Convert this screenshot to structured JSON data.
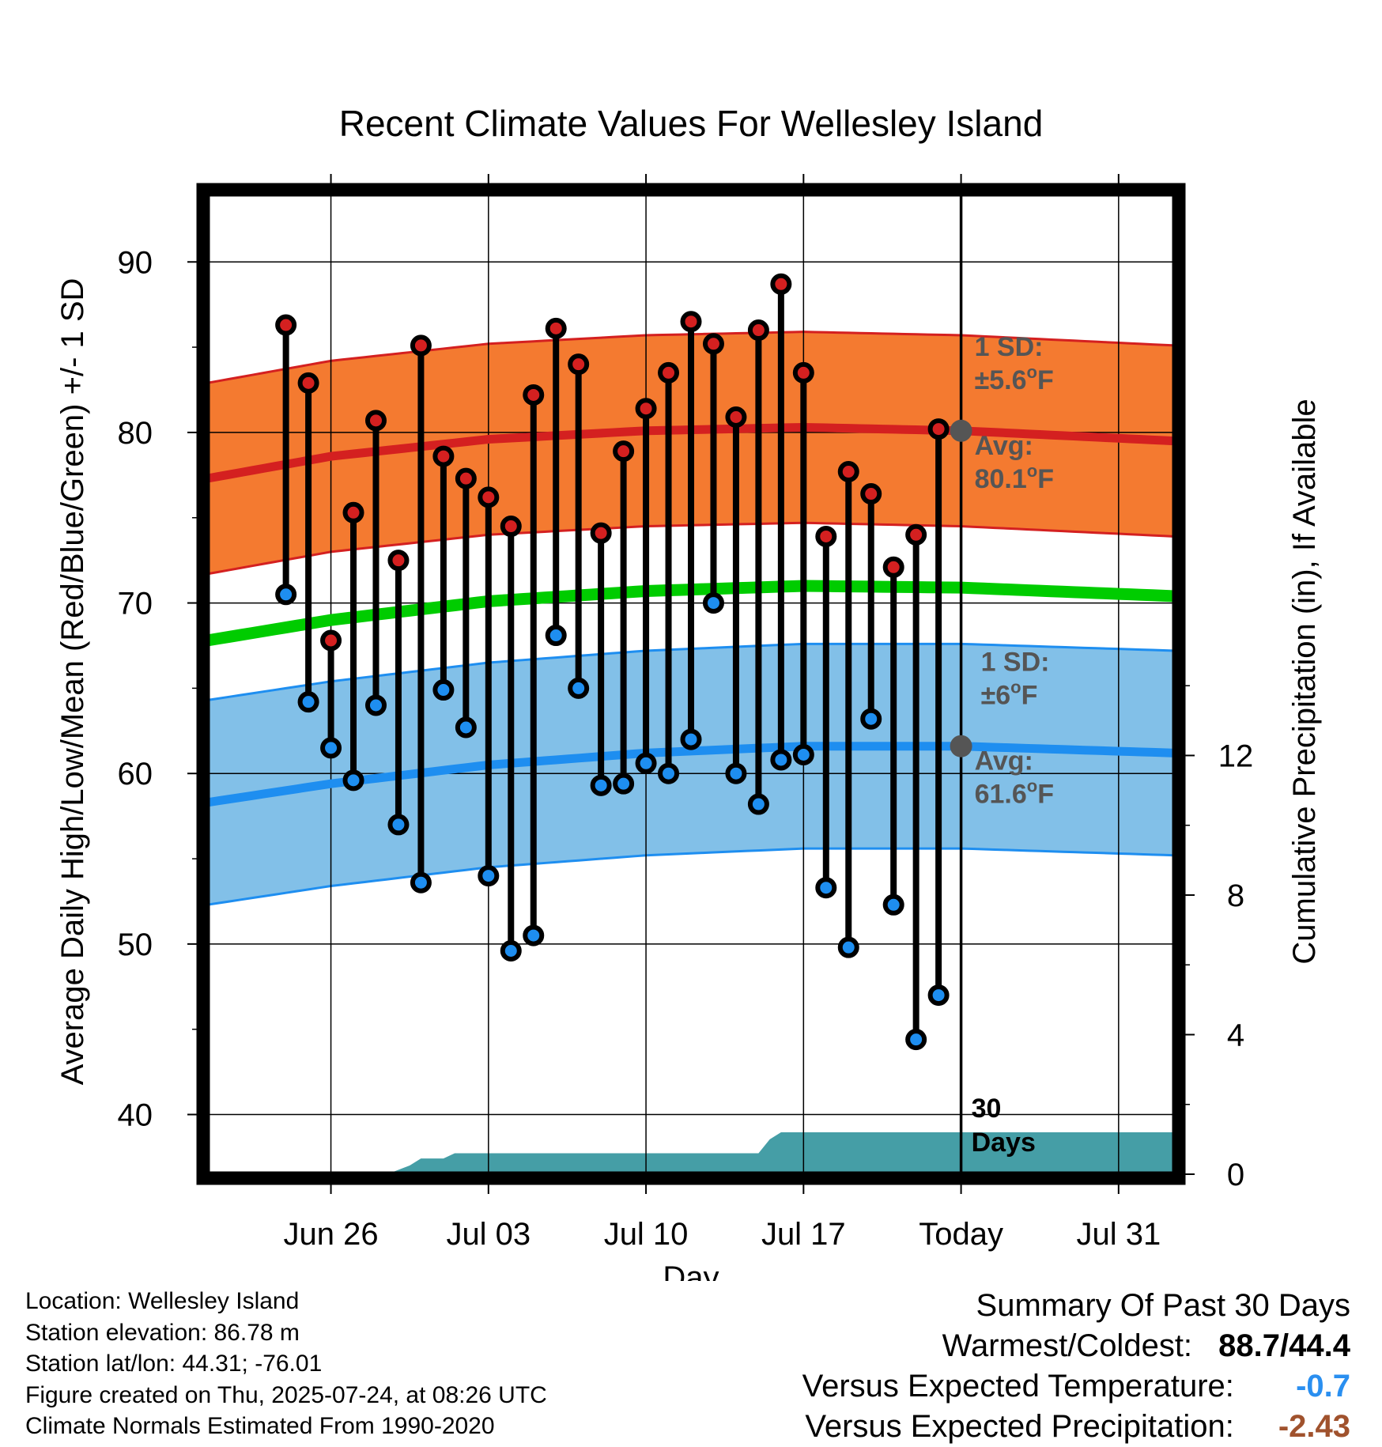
{
  "chart_data": {
    "type": "line",
    "title": "Recent Climate Values For Wellesley Island",
    "xlabel": "Day",
    "ylabel": "Average Daily High/Low/Mean (Red/Blue/Green) +/- 1 SD",
    "y2label": "Cumulative Precipitation (in), If Available",
    "ylim": [
      36.5,
      94
    ],
    "y2lim": [
      0,
      28.1
    ],
    "xlim_days": [
      -33.5,
      9.5
    ],
    "y_ticks": [
      "40",
      "50",
      "60",
      "70",
      "80",
      "90"
    ],
    "y2_ticks": [
      "0",
      "4",
      "8",
      "12"
    ],
    "x_ticks": [
      {
        "label": "Jun 26",
        "day": -28
      },
      {
        "label": "Jul 03",
        "day": -21
      },
      {
        "label": "Jul 10",
        "day": -14
      },
      {
        "label": "Jul 17",
        "day": -7
      },
      {
        "label": "Today",
        "day": 0
      },
      {
        "label": "Jul 31",
        "day": 7
      }
    ],
    "grid": true,
    "daily": [
      {
        "date": "Jun 25",
        "high": 86.3,
        "low": 70.5
      },
      {
        "date": "Jun 26",
        "high": 82.9,
        "low": 64.2
      },
      {
        "date": "Jun 27",
        "high": 67.8,
        "low": 61.5
      },
      {
        "date": "Jun 28",
        "high": 75.3,
        "low": 59.6
      },
      {
        "date": "Jun 29",
        "high": 80.7,
        "low": 64.0
      },
      {
        "date": "Jun 30",
        "high": 72.5,
        "low": 57.0
      },
      {
        "date": "Jul 01",
        "high": 85.1,
        "low": 53.6
      },
      {
        "date": "Jul 02",
        "high": 78.6,
        "low": 64.9
      },
      {
        "date": "Jul 03",
        "high": 77.3,
        "low": 62.7
      },
      {
        "date": "Jul 04",
        "high": 76.2,
        "low": 54.0
      },
      {
        "date": "Jul 05",
        "high": 74.5,
        "low": 49.6
      },
      {
        "date": "Jul 06",
        "high": 82.2,
        "low": 50.5
      },
      {
        "date": "Jul 07",
        "high": 86.1,
        "low": 68.1
      },
      {
        "date": "Jul 08",
        "high": 84.0,
        "low": 65.0
      },
      {
        "date": "Jul 09",
        "high": 74.1,
        "low": 59.3
      },
      {
        "date": "Jul 10",
        "high": 78.9,
        "low": 59.4
      },
      {
        "date": "Jul 11",
        "high": 81.4,
        "low": 60.6
      },
      {
        "date": "Jul 12",
        "high": 83.5,
        "low": 60.0
      },
      {
        "date": "Jul 13",
        "high": 86.5,
        "low": 62.0
      },
      {
        "date": "Jul 14",
        "high": 85.2,
        "low": 70.0
      },
      {
        "date": "Jul 15",
        "high": 80.9,
        "low": 60.0
      },
      {
        "date": "Jul 16",
        "high": 86.0,
        "low": 58.2
      },
      {
        "date": "Jul 17",
        "high": 88.7,
        "low": 60.8
      },
      {
        "date": "Jul 18",
        "high": 83.5,
        "low": 61.1
      },
      {
        "date": "Jul 19",
        "high": 73.9,
        "low": 53.3
      },
      {
        "date": "Jul 20",
        "high": 77.7,
        "low": 49.8
      },
      {
        "date": "Jul 21",
        "high": 76.4,
        "low": 63.2
      },
      {
        "date": "Jul 22",
        "high": 72.1,
        "low": 52.3
      },
      {
        "date": "Jul 23",
        "high": 74.0,
        "low": 44.4
      },
      {
        "date": "Jul 24",
        "high": 80.2,
        "low": 47.0
      }
    ],
    "first_day_offset": -30,
    "normals_high": {
      "x": [
        -33.5,
        -28,
        -21,
        -14,
        -7,
        0,
        9.5
      ],
      "y": [
        77.3,
        78.6,
        79.6,
        80.1,
        80.3,
        80.1,
        79.5
      ]
    },
    "normals_low": {
      "x": [
        -33.5,
        -28,
        -21,
        -14,
        -7,
        0,
        9.5
      ],
      "y": [
        58.3,
        59.4,
        60.5,
        61.2,
        61.6,
        61.6,
        61.2
      ]
    },
    "normals_mean": {
      "x": [
        -33.5,
        -28,
        -21,
        -14,
        -7,
        0,
        9.5
      ],
      "y": [
        67.8,
        69.0,
        70.1,
        70.7,
        71.0,
        70.9,
        70.4
      ]
    },
    "sd_high": 5.6,
    "sd_low": 6,
    "precip_cumulative": {
      "x": [
        -33.5,
        -26.5,
        -25.5,
        -24.5,
        -24,
        -23.5,
        -23,
        -22.5,
        -22,
        -21,
        -20,
        -13,
        -9,
        -8.5,
        -8,
        9.5
      ],
      "y": [
        0,
        0,
        0,
        0.25,
        0.45,
        0.45,
        0.45,
        0.6,
        0.6,
        0.6,
        0.6,
        0.6,
        0.6,
        1.0,
        1.2,
        1.2
      ]
    },
    "annotations": {
      "high_sd_label": "1 SD:",
      "high_sd_value": "±5.6°F",
      "high_avg_label": "Avg:",
      "high_avg_value": "80.1°F",
      "low_sd_label": "1 SD:",
      "low_sd_value": "±6°F",
      "low_avg_label": "Avg:",
      "low_avg_value": "61.6°F",
      "days_count": "30",
      "days_unit": "Days"
    },
    "colors": {
      "high_band": "#f47a30",
      "high_edge": "#d42020",
      "low_band": "#82c0e8",
      "low_edge": "#1e8ef0",
      "mean_line": "#00cc00",
      "precip": "#459ea6",
      "high_dot": "#d42020",
      "low_dot": "#1e8ef0",
      "avg_marker": "#555555",
      "annotation_text": "#555555"
    }
  },
  "info": {
    "location": "Location: Wellesley Island",
    "elevation": "Station elevation: 86.78 m",
    "latlon": "Station lat/lon: 44.31; -76.01",
    "created": "Figure created on Thu, 2025-07-24, at 08:26 UTC",
    "normals": "Climate Normals Estimated From 1990-2020"
  },
  "summary": {
    "heading": "Summary Of Past 30 Days",
    "warmest_coldest_label": "Warmest/Coldest:",
    "warmest_coldest_value": "88.7/44.4",
    "temp_label": "Versus Expected Temperature:",
    "temp_value": "-0.7",
    "temp_color": "#2a8ff0",
    "precip_label": "Versus Expected Precipitation:",
    "precip_value": "-2.43",
    "precip_color": "#a0522d"
  }
}
